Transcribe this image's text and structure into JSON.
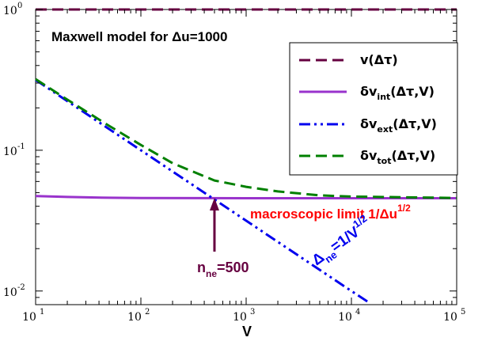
{
  "chart_data": {
    "type": "line",
    "title": "Maxwell model for Δu=1000",
    "xlabel": "V",
    "ylabel": "",
    "xscale": "log",
    "yscale": "log",
    "xlim": [
      10,
      100000
    ],
    "ylim": [
      0.008,
      1.0
    ],
    "x_ticks": [
      {
        "base": "10",
        "exp": "1"
      },
      {
        "base": "10",
        "exp": "2"
      },
      {
        "base": "10",
        "exp": "3"
      },
      {
        "base": "10",
        "exp": "4"
      },
      {
        "base": "10",
        "exp": "5"
      }
    ],
    "y_ticks": [
      {
        "value": 1,
        "base": "10",
        "exp": "0"
      },
      {
        "value": 0.1,
        "base": "10",
        "exp": "-1"
      },
      {
        "value": 0.01,
        "base": "10",
        "exp": "-2"
      }
    ],
    "legend_position": "top-right",
    "series": [
      {
        "name_main": "v(Δτ)",
        "name_sub": "",
        "name_tail": "",
        "color": "#660040",
        "dash": "dash",
        "x": [
          10,
          100000
        ],
        "y": [
          1.0,
          1.0
        ]
      },
      {
        "name_main": "δv",
        "name_sub": "int",
        "name_tail": "(Δτ,V)",
        "color": "#9933cc",
        "dash": "solid",
        "x": [
          10,
          20,
          50,
          100,
          1000,
          10000,
          100000
        ],
        "y": [
          0.0473,
          0.0466,
          0.046,
          0.0458,
          0.0456,
          0.0456,
          0.0456
        ]
      },
      {
        "name_main": "δv",
        "name_sub": "ext",
        "name_tail": "(Δτ,V)",
        "color": "#0000ee",
        "dash": "dashdotdot",
        "x": [
          10,
          100,
          1000,
          10000,
          15000
        ],
        "y": [
          0.316,
          0.1,
          0.0316,
          0.01,
          0.0082
        ]
      },
      {
        "name_main": "δv",
        "name_sub": "tot",
        "name_tail": "(Δτ,V)",
        "color": "#008000",
        "dash": "dash",
        "x": [
          10,
          20,
          50,
          100,
          200,
          500,
          1000,
          2000,
          5000,
          10000,
          100000
        ],
        "y": [
          0.32,
          0.229,
          0.149,
          0.109,
          0.081,
          0.061,
          0.055,
          0.051,
          0.0478,
          0.0469,
          0.0458
        ]
      }
    ],
    "annotations": {
      "macro_main": "macroscopic limit 1/Δu",
      "macro_sup": "1/2",
      "arrow_main": "n",
      "arrow_sub": "ne",
      "arrow_tail": "=500",
      "arrow_x": 500,
      "slope_main": "Δ",
      "slope_sub": "ne",
      "slope_mid": "=1/V",
      "slope_sup": "1/2"
    }
  }
}
